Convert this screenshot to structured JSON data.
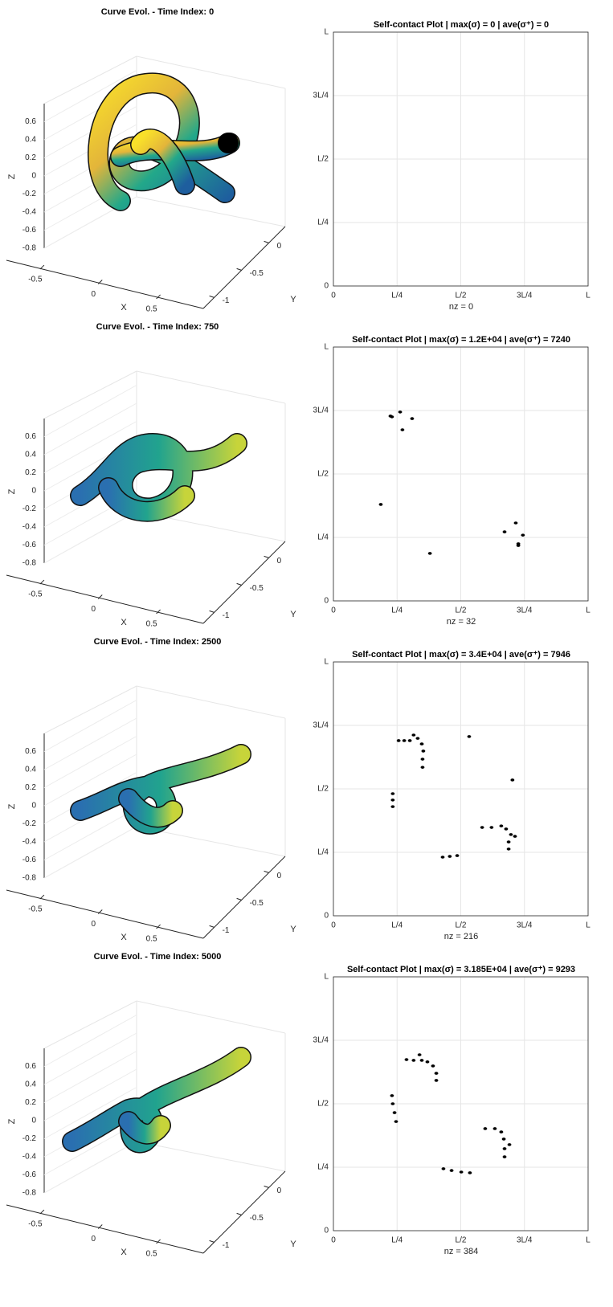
{
  "chart_data": [
    {
      "type": "surface3d",
      "title": "Curve Evol. - Time Index: 0",
      "xlabel": "X",
      "ylabel": "Y",
      "zlabel": "Z",
      "xlim": [
        -0.8,
        0.8
      ],
      "xticks": [
        -0.5,
        0,
        0.5
      ],
      "ylim": [
        -1.2,
        0.3
      ],
      "yticks": [
        -1,
        -0.5,
        0
      ],
      "zlim": [
        -0.8,
        0.8
      ],
      "zticks": [
        -0.8,
        -0.6,
        -0.4,
        -0.2,
        0,
        0.2,
        0.4,
        0.6
      ]
    },
    {
      "type": "spy",
      "title": "Self-contact Plot | max(σ) = 0 | ave(σ⁺) = 0",
      "xlabel": "nz = 0",
      "color": "#000000",
      "grid": true,
      "xlim": [
        0,
        1
      ],
      "ylim": [
        0,
        1
      ],
      "xticks": [
        0,
        {
          "value": 0.25,
          "label": "L/4"
        },
        {
          "value": 0.5,
          "label": "L/2"
        },
        {
          "value": 0.75,
          "label": "3L/4"
        },
        {
          "value": 1,
          "label": "L"
        }
      ],
      "yticks": [
        0,
        {
          "value": 0.25,
          "label": "L/4"
        },
        {
          "value": 0.5,
          "label": "L/2"
        },
        {
          "value": 0.75,
          "label": "3L/4"
        },
        {
          "value": 1,
          "label": "L"
        }
      ],
      "x": [],
      "y": []
    },
    {
      "type": "surface3d",
      "title": "Curve Evol. - Time Index: 750",
      "xlabel": "X",
      "ylabel": "Y",
      "zlabel": "Z",
      "xlim": [
        -0.8,
        0.8
      ],
      "xticks": [
        -0.5,
        0,
        0.5
      ],
      "ylim": [
        -1.2,
        0.3
      ],
      "yticks": [
        -1,
        -0.5,
        0
      ],
      "zlim": [
        -0.8,
        0.8
      ],
      "zticks": [
        -0.8,
        -0.6,
        -0.4,
        -0.2,
        0,
        0.2,
        0.4,
        0.6
      ]
    },
    {
      "type": "spy",
      "title": "Self-contact Plot | max(σ) = 1.2E+04 | ave(σ⁺) = 7240",
      "xlabel": "nz = 32",
      "color": "#000000",
      "grid": true,
      "xlim": [
        0,
        1
      ],
      "ylim": [
        0,
        1
      ],
      "xticks": [
        0,
        {
          "value": 0.25,
          "label": "L/4"
        },
        {
          "value": 0.5,
          "label": "L/2"
        },
        {
          "value": 0.75,
          "label": "3L/4"
        },
        {
          "value": 1,
          "label": "L"
        }
      ],
      "yticks": [
        0,
        {
          "value": 0.25,
          "label": "L/4"
        },
        {
          "value": 0.5,
          "label": "L/2"
        },
        {
          "value": 0.75,
          "label": "3L/4"
        },
        {
          "value": 1,
          "label": "L"
        }
      ],
      "x": [
        0.224,
        0.23,
        0.262,
        0.309,
        0.271,
        0.186,
        0.379,
        0.672,
        0.716,
        0.744,
        0.726,
        0.726
      ],
      "y": [
        0.728,
        0.725,
        0.744,
        0.718,
        0.674,
        0.38,
        0.187,
        0.272,
        0.307,
        0.259,
        0.225,
        0.218
      ]
    },
    {
      "type": "surface3d",
      "title": "Curve Evol. - Time Index: 2500",
      "xlabel": "X",
      "ylabel": "Y",
      "zlabel": "Z",
      "xlim": [
        -0.8,
        0.8
      ],
      "xticks": [
        -0.5,
        0,
        0.5
      ],
      "ylim": [
        -1.2,
        0.3
      ],
      "yticks": [
        -1,
        -0.5,
        0
      ],
      "zlim": [
        -0.8,
        0.8
      ],
      "zticks": [
        -0.8,
        -0.6,
        -0.4,
        -0.2,
        0,
        0.2,
        0.4,
        0.6
      ]
    },
    {
      "type": "spy",
      "title": "Self-contact Plot | max(σ) = 3.4E+04 | ave(σ⁺) = 7946",
      "xlabel": "nz = 216",
      "color": "#000000",
      "grid": true,
      "xlim": [
        0,
        1
      ],
      "ylim": [
        0,
        1
      ],
      "xticks": [
        0,
        {
          "value": 0.25,
          "label": "L/4"
        },
        {
          "value": 0.5,
          "label": "L/2"
        },
        {
          "value": 0.75,
          "label": "3L/4"
        },
        {
          "value": 1,
          "label": "L"
        }
      ],
      "yticks": [
        0,
        {
          "value": 0.25,
          "label": "L/4"
        },
        {
          "value": 0.5,
          "label": "L/2"
        },
        {
          "value": 0.75,
          "label": "3L/4"
        },
        {
          "value": 1,
          "label": "L"
        }
      ],
      "x": [
        0.256,
        0.278,
        0.3,
        0.315,
        0.331,
        0.347,
        0.353,
        0.35,
        0.35,
        0.233,
        0.233,
        0.233,
        0.429,
        0.457,
        0.486,
        0.584,
        0.621,
        0.659,
        0.678,
        0.697,
        0.713,
        0.688,
        0.688,
        0.533,
        0.703
      ],
      "y": [
        0.69,
        0.69,
        0.69,
        0.712,
        0.699,
        0.677,
        0.649,
        0.617,
        0.585,
        0.481,
        0.456,
        0.43,
        0.231,
        0.234,
        0.237,
        0.348,
        0.348,
        0.354,
        0.342,
        0.32,
        0.313,
        0.291,
        0.263,
        0.706,
        0.535
      ]
    },
    {
      "type": "surface3d",
      "title": "Curve Evol. - Time Index: 5000",
      "xlabel": "X",
      "ylabel": "Y",
      "zlabel": "Z",
      "xlim": [
        -0.8,
        0.8
      ],
      "xticks": [
        -0.5,
        0,
        0.5
      ],
      "ylim": [
        -1.2,
        0.3
      ],
      "yticks": [
        -1,
        -0.5,
        0
      ],
      "zlim": [
        -0.8,
        0.8
      ],
      "zticks": [
        -0.8,
        -0.6,
        -0.4,
        -0.2,
        0,
        0.2,
        0.4,
        0.6
      ]
    },
    {
      "type": "spy",
      "title": "Self-contact Plot | max(σ) = 3.185E+04 | ave(σ⁺) = 9293",
      "xlabel": "nz = 384",
      "color": "#000000",
      "grid": true,
      "xlim": [
        0,
        1
      ],
      "ylim": [
        0,
        1
      ],
      "xticks": [
        0,
        {
          "value": 0.25,
          "label": "L/4"
        },
        {
          "value": 0.5,
          "label": "L/2"
        },
        {
          "value": 0.75,
          "label": "3L/4"
        },
        {
          "value": 1,
          "label": "L"
        }
      ],
      "yticks": [
        0,
        {
          "value": 0.25,
          "label": "L/4"
        },
        {
          "value": 0.5,
          "label": "L/2"
        },
        {
          "value": 0.75,
          "label": "3L/4"
        },
        {
          "value": 1,
          "label": "L"
        }
      ],
      "x": [
        0.287,
        0.315,
        0.347,
        0.338,
        0.369,
        0.391,
        0.404,
        0.404,
        0.23,
        0.233,
        0.24,
        0.246,
        0.432,
        0.464,
        0.502,
        0.536,
        0.596,
        0.634,
        0.659,
        0.669,
        0.672,
        0.672,
        0.691
      ],
      "y": [
        0.674,
        0.671,
        0.671,
        0.693,
        0.665,
        0.649,
        0.62,
        0.592,
        0.532,
        0.5,
        0.465,
        0.43,
        0.244,
        0.237,
        0.231,
        0.228,
        0.402,
        0.402,
        0.389,
        0.361,
        0.323,
        0.291,
        0.339
      ]
    }
  ]
}
